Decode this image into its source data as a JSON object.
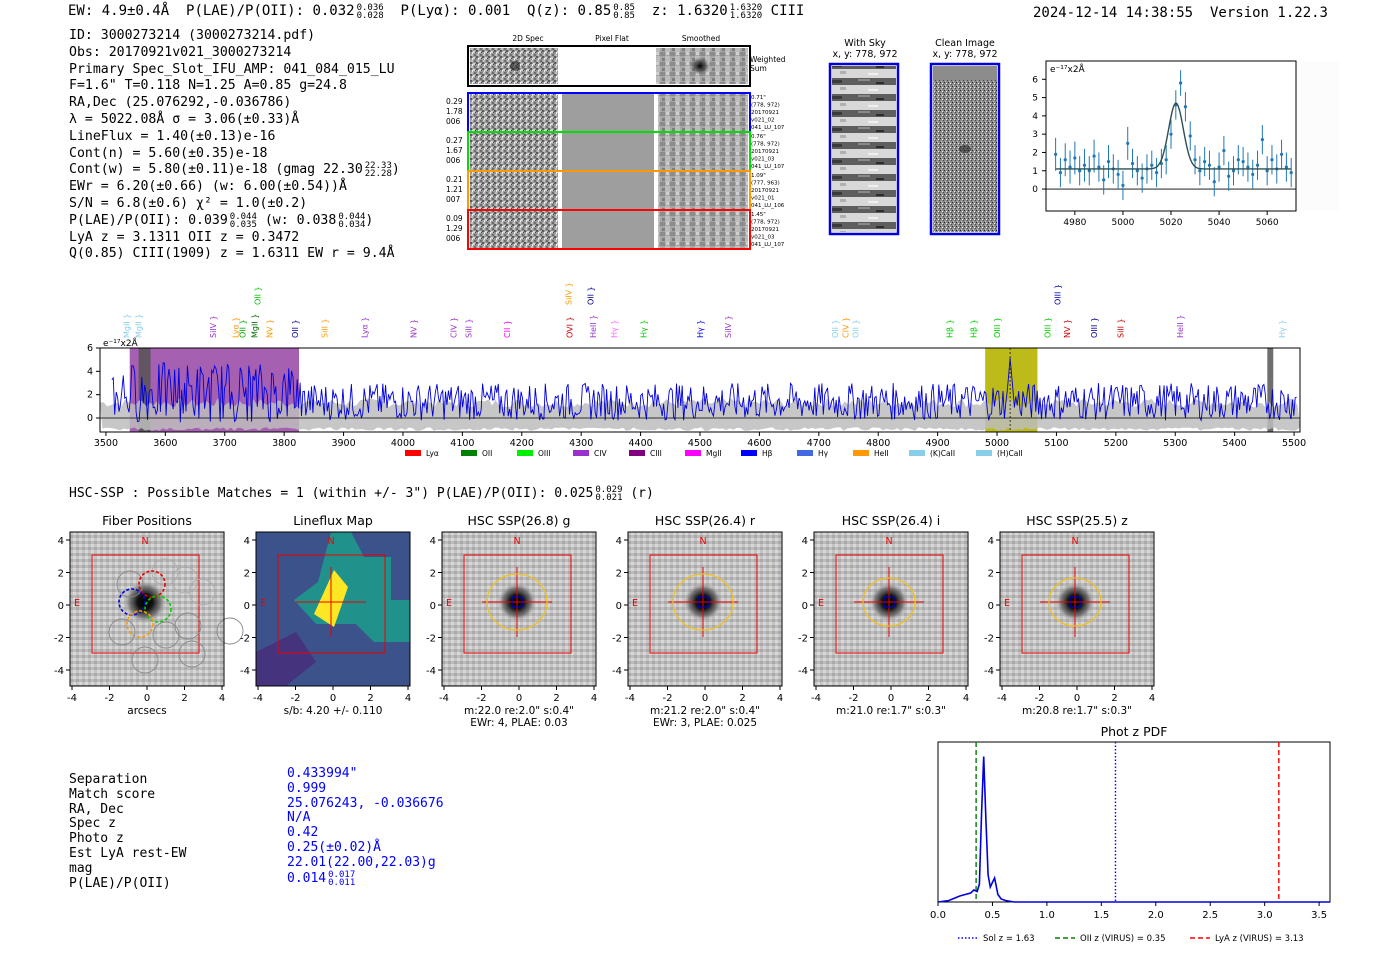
{
  "header": {
    "ew": "EW: 4.9±0.4Å",
    "plae_label": "P(LAE)/P(OII): 0.032",
    "plae_hi": "0.036",
    "plae_lo": "0.028",
    "plya": "P(Lyα): 0.001",
    "qz_label": "Q(z): 0.85",
    "qz_hi": "0.85",
    "qz_lo": "0.85",
    "z_label": "z: 1.6320",
    "z_hi": "1.6320",
    "z_lo": "1.6320",
    "z_line": "CIII",
    "timestamp": "2024-12-14 14:38:55",
    "version": "Version 1.22.3"
  },
  "info": {
    "id": "ID: 3000273214 (3000273214.pdf)",
    "obs": "Obs: 20170921v021_3000273214",
    "slot": "Primary Spec_Slot_IFU_AMP: 041_084_015_LU",
    "params": "F=1.6\"  T=0.118  N=1.25  A=0.85  g=24.8",
    "radec": "RA,Dec (25.076292,-0.036786)",
    "lambda": "λ = 5022.08Å  σ = 3.06(±0.33)Å",
    "lineflux": "LineFlux = 1.40(±0.13)e-16",
    "cont_n": "Cont(n) = 5.60(±0.35)e-18",
    "cont_w": "Cont(w) = 5.80(±0.11)e-18 (gmag 22.30",
    "gmag_hi": "22.33",
    "gmag_lo": "22.28",
    "cont_w_end": ")",
    "ewr": "EWr = 6.20(±0.66) (w: 6.00(±0.54))Å",
    "sn": "S/N = 6.8(±0.6)  χ² = 1.0(±0.2)",
    "plae": "P(LAE)/P(OII): 0.039",
    "plae_hi": "0.044",
    "plae_lo": "0.035",
    "plae_w": "(w: 0.038",
    "plae_w_hi": "0.044",
    "plae_w_lo": "0.034",
    "plae_w_end": ")",
    "lya_z": "LyA z = 3.1311  OII z = 0.3472",
    "q_line": "Q(0.85) CIII(1909) z = 1.6311  EW r = 9.4Å"
  },
  "spec2d": {
    "col_labels": [
      "2D Spec",
      "Pixel Flat",
      "Smoothed"
    ],
    "weighted_label": "Weighted\nSum",
    "rows": [
      {
        "left": [
          "0.29",
          "1.78",
          "006"
        ],
        "right": [
          "0.71\"",
          "(778, 972)",
          "20170921",
          "v021_02",
          "041_LU_107"
        ],
        "color": "#0000ff"
      },
      {
        "left": [
          "0.27",
          "1.67",
          "006"
        ],
        "right": [
          "0.76\"",
          "(778, 972)",
          "20170921",
          "v021_03",
          "041_LU_107"
        ],
        "color": "#00dd00"
      },
      {
        "left": [
          "0.21",
          "1.21",
          "007"
        ],
        "right": [
          "1.09\"",
          "(777, 963)",
          "20170921",
          "v021_01",
          "041_LU_106"
        ],
        "color": "#ff9900"
      },
      {
        "left": [
          "0.09",
          "1.29",
          "006"
        ],
        "right": [
          "1.45\"",
          "(778, 972)",
          "20170921",
          "v021_03",
          "041_LU_107"
        ],
        "color": "#ff0000"
      }
    ]
  },
  "cutouts_top": {
    "with_sky": "With Sky",
    "with_sky_xy": "x, y: 778, 972",
    "clean": "Clean Image",
    "clean_xy": "x, y: 778, 972"
  },
  "line_fit": {
    "chart_data": {
      "type": "scatter",
      "title": "",
      "ylabel": "e⁻¹⁷x2Å",
      "xlim": [
        4968,
        5072
      ],
      "ylim": [
        -1.2,
        7.0
      ],
      "x_ticks": [
        4980,
        5000,
        5020,
        5040,
        5060
      ],
      "y_ticks": [
        0,
        1,
        2,
        3,
        4,
        5,
        6
      ],
      "x": [
        4972,
        4974,
        4976,
        4978,
        4980,
        4982,
        4984,
        4986,
        4988,
        4990,
        4992,
        4994,
        4996,
        4998,
        5000,
        5002,
        5004,
        5006,
        5008,
        5010,
        5012,
        5014,
        5016,
        5018,
        5020,
        5022,
        5024,
        5026,
        5028,
        5030,
        5032,
        5034,
        5036,
        5038,
        5040,
        5042,
        5044,
        5046,
        5048,
        5050,
        5052,
        5054,
        5056,
        5058,
        5060,
        5062,
        5064,
        5066,
        5068,
        5070
      ],
      "y": [
        1.9,
        0.9,
        1.6,
        1.2,
        1.7,
        1.0,
        1.3,
        1.0,
        1.8,
        1.2,
        0.5,
        1.5,
        1.1,
        0.8,
        0.2,
        2.5,
        1.4,
        1.0,
        0.6,
        1.1,
        1.3,
        0.9,
        1.4,
        1.6,
        3.0,
        4.6,
        5.8,
        4.5,
        2.9,
        1.6,
        1.0,
        1.5,
        1.3,
        0.4,
        1.2,
        2.1,
        0.7,
        1.0,
        1.6,
        1.5,
        1.2,
        0.8,
        1.3,
        2.7,
        1.0,
        1.6,
        1.1,
        1.9,
        1.2,
        0.9
      ],
      "err": [
        0.9,
        0.8,
        0.9,
        0.9,
        0.9,
        0.8,
        0.9,
        0.8,
        0.9,
        0.8,
        0.8,
        0.9,
        0.8,
        0.8,
        0.8,
        0.9,
        0.8,
        0.8,
        0.8,
        0.8,
        0.8,
        0.8,
        0.8,
        0.8,
        0.8,
        0.8,
        0.7,
        0.8,
        0.8,
        0.8,
        0.8,
        0.8,
        0.8,
        0.8,
        0.8,
        0.8,
        0.8,
        0.8,
        0.8,
        0.8,
        0.8,
        0.8,
        0.8,
        0.8,
        0.8,
        0.8,
        0.8,
        0.8,
        0.8,
        0.8
      ],
      "model": {
        "continuum": 1.1,
        "amplitude": 3.6,
        "center": 5022.08,
        "sigma": 3.06
      }
    }
  },
  "spectrum": {
    "chart_data": {
      "type": "line",
      "ylabel": "e⁻¹⁷x2Å",
      "xlim": [
        3490,
        5510
      ],
      "ylim": [
        -1.2,
        6.0
      ],
      "x_ticks": [
        3500,
        3600,
        3700,
        3800,
        3900,
        4000,
        4100,
        4200,
        4300,
        4400,
        4500,
        4600,
        4700,
        4800,
        4900,
        5000,
        5100,
        5200,
        5300,
        5400,
        5500
      ],
      "y_ticks": [
        0,
        2,
        4,
        6
      ],
      "shaded_regions": [
        {
          "x0": 3540,
          "x1": 3825,
          "color": "#9b4fa8"
        },
        {
          "x0": 4980,
          "x1": 5068,
          "color": "#b5b400"
        },
        {
          "x0": 3555,
          "x1": 3575,
          "color": "#555555"
        },
        {
          "x0": 5455,
          "x1": 5465,
          "color": "#555555"
        }
      ],
      "detection_wavelength": 5022.08,
      "line_markers": [
        {
          "label": "MgII",
          "x": 3535,
          "color": "#87ceeb",
          "tier": 1
        },
        {
          "label": "MgII",
          "x": 3555,
          "color": "#87ceeb",
          "tier": 1
        },
        {
          "label": "SiIV",
          "x": 3680,
          "color": "#9932cc",
          "tier": 1
        },
        {
          "label": "Lyα",
          "x": 3718,
          "color": "#ff9900",
          "tier": 1
        },
        {
          "label": "OII",
          "x": 3730,
          "color": "#00aa00",
          "tier": 1
        },
        {
          "label": "OII",
          "x": 3755,
          "color": "#00cc00",
          "tier": 3
        },
        {
          "label": "MgII",
          "x": 3750,
          "color": "#006400",
          "tier": 1
        },
        {
          "label": "NV",
          "x": 3775,
          "color": "#ff9900",
          "tier": 1
        },
        {
          "label": "OII",
          "x": 3818,
          "color": "#00008b",
          "tier": 1
        },
        {
          "label": "SiII",
          "x": 3868,
          "color": "#ff9900",
          "tier": 1
        },
        {
          "label": "Lyα",
          "x": 3935,
          "color": "#9932cc",
          "tier": 1
        },
        {
          "label": "NV",
          "x": 4018,
          "color": "#9932cc",
          "tier": 1
        },
        {
          "label": "CIV",
          "x": 4085,
          "color": "#9932cc",
          "tier": 1
        },
        {
          "label": "SiII",
          "x": 4110,
          "color": "#9932cc",
          "tier": 1
        },
        {
          "label": "CII",
          "x": 4175,
          "color": "#ff00ff",
          "tier": 1
        },
        {
          "label": "SiIV",
          "x": 4279,
          "color": "#ff9900",
          "tier": 3
        },
        {
          "label": "OII",
          "x": 4316,
          "color": "#00008b",
          "tier": 3
        },
        {
          "label": "OVI",
          "x": 4280,
          "color": "#cc0000",
          "tier": 1
        },
        {
          "label": "HeII",
          "x": 4320,
          "color": "#9932cc",
          "tier": 1
        },
        {
          "label": "Hγ",
          "x": 4355,
          "color": "#ff66ff",
          "tier": 1
        },
        {
          "label": "Hγ",
          "x": 4405,
          "color": "#00cc00",
          "tier": 1
        },
        {
          "label": "Hγ",
          "x": 4500,
          "color": "#0000ff",
          "tier": 1
        },
        {
          "label": "SiIV",
          "x": 4547,
          "color": "#9932cc",
          "tier": 1
        },
        {
          "label": "OII",
          "x": 4727,
          "color": "#87ceeb",
          "tier": 1
        },
        {
          "label": "CIV",
          "x": 4745,
          "color": "#ff9900",
          "tier": 1
        },
        {
          "label": "OII",
          "x": 4762,
          "color": "#87ceeb",
          "tier": 1
        },
        {
          "label": "Hβ",
          "x": 4920,
          "color": "#00cc00",
          "tier": 1
        },
        {
          "label": "Hβ",
          "x": 4960,
          "color": "#00cc00",
          "tier": 1
        },
        {
          "label": "OIII",
          "x": 5000,
          "color": "#00cc00",
          "tier": 1
        },
        {
          "label": "OIII",
          "x": 5102,
          "color": "#0000aa",
          "tier": 3
        },
        {
          "label": "OIII",
          "x": 5085,
          "color": "#00cc00",
          "tier": 1
        },
        {
          "label": "NV",
          "x": 5118,
          "color": "#cc0000",
          "tier": 1
        },
        {
          "label": "OIII",
          "x": 5163,
          "color": "#00008b",
          "tier": 1
        },
        {
          "label": "SiII",
          "x": 5208,
          "color": "#cc0000",
          "tier": 1
        },
        {
          "label": "HeII",
          "x": 5308,
          "color": "#9932cc",
          "tier": 1
        },
        {
          "label": "Hγ",
          "x": 5480,
          "color": "#87ceeb",
          "tier": 1
        }
      ],
      "legend": [
        {
          "label": "Lyα",
          "color": "#ff0000"
        },
        {
          "label": "OII",
          "color": "#008000"
        },
        {
          "label": "OIII",
          "color": "#00ee00"
        },
        {
          "label": "CIV",
          "color": "#9932cc"
        },
        {
          "label": "CIII",
          "color": "#800080"
        },
        {
          "label": "MgII",
          "color": "#ff00ff"
        },
        {
          "label": "Hβ",
          "color": "#0000ff"
        },
        {
          "label": "Hγ",
          "color": "#4169e1"
        },
        {
          "label": "HeII",
          "color": "#ff9900"
        },
        {
          "label": "(K)CaII",
          "color": "#87ceeb"
        },
        {
          "label": "(H)CaII",
          "color": "#87ceeb"
        }
      ]
    }
  },
  "hsc": {
    "line": "HSC-SSP : Possible Matches = 1 (within +/- 3\")  P(LAE)/P(OII): 0.025",
    "line_hi": "0.029",
    "line_lo": "0.021",
    "line_end": "(r)",
    "axis_ticks": [
      "-4",
      "-2",
      "0",
      "2",
      "4"
    ],
    "compass_n": "N",
    "compass_e": "E",
    "panels": [
      {
        "title": "Fiber Positions",
        "caption1": "arcsecs",
        "caption2": ""
      },
      {
        "title": "Lineflux Map",
        "caption1": "s/b: 4.20 +/- 0.110",
        "caption2": ""
      },
      {
        "title": "HSC SSP(26.8) g",
        "caption1": "m:22.0  re:2.0\"  s:0.4\"",
        "caption2": "EWr: 4, PLAE: 0.03"
      },
      {
        "title": "HSC SSP(26.4) r",
        "caption1": "m:21.2  re:2.0\"  s:0.4\"",
        "caption2": "EWr: 3, PLAE: 0.025"
      },
      {
        "title": "HSC SSP(26.4) i",
        "caption1": "m:21.0  re:1.7\"  s:0.3\"",
        "caption2": ""
      },
      {
        "title": "HSC SSP(25.5) z",
        "caption1": "m:20.8  re:1.7\"  s:0.3\"",
        "caption2": ""
      }
    ]
  },
  "match": {
    "labels": [
      "Separation",
      "Match score",
      "RA, Dec",
      "Spec z",
      "Photo z",
      "Est LyA rest-EW",
      "mag",
      "P(LAE)/P(OII)"
    ],
    "values": [
      "0.433994\"",
      "0.999",
      "25.076243, -0.036676",
      "N/A",
      "0.42",
      "0.25(±0.02)Å",
      "22.01(22.00,22.03)g",
      "0.014"
    ],
    "plae_hi": "0.017",
    "plae_lo": "0.011"
  },
  "photz": {
    "chart_data": {
      "type": "line",
      "title": "Phot z PDF",
      "xlim": [
        0.0,
        3.6
      ],
      "ylim": [
        0,
        1.0
      ],
      "x_ticks": [
        "0.0",
        "0.5",
        "1.0",
        "1.5",
        "2.0",
        "2.5",
        "3.0",
        "3.5"
      ],
      "x": [
        0.0,
        0.1,
        0.2,
        0.25,
        0.3,
        0.33,
        0.36,
        0.38,
        0.4,
        0.42,
        0.44,
        0.46,
        0.48,
        0.5,
        0.52,
        0.55,
        0.58,
        0.62,
        0.7,
        1.0,
        2.0,
        3.6
      ],
      "y": [
        0.0,
        0.01,
        0.04,
        0.05,
        0.06,
        0.08,
        0.07,
        0.12,
        0.6,
        0.97,
        0.55,
        0.18,
        0.1,
        0.13,
        0.16,
        0.05,
        0.02,
        0.01,
        0.0,
        0.0,
        0.0,
        0.0
      ],
      "vlines": [
        {
          "x": 1.63,
          "color": "#0000ff",
          "style": "dotted",
          "label": "Sol z = 1.63"
        },
        {
          "x": 0.35,
          "color": "#008000",
          "style": "dashed",
          "label": "OII z (VIRUS) = 0.35"
        },
        {
          "x": 3.13,
          "color": "#ff0000",
          "style": "dashed",
          "label": "LyA z (VIRUS) = 3.13"
        }
      ]
    }
  }
}
